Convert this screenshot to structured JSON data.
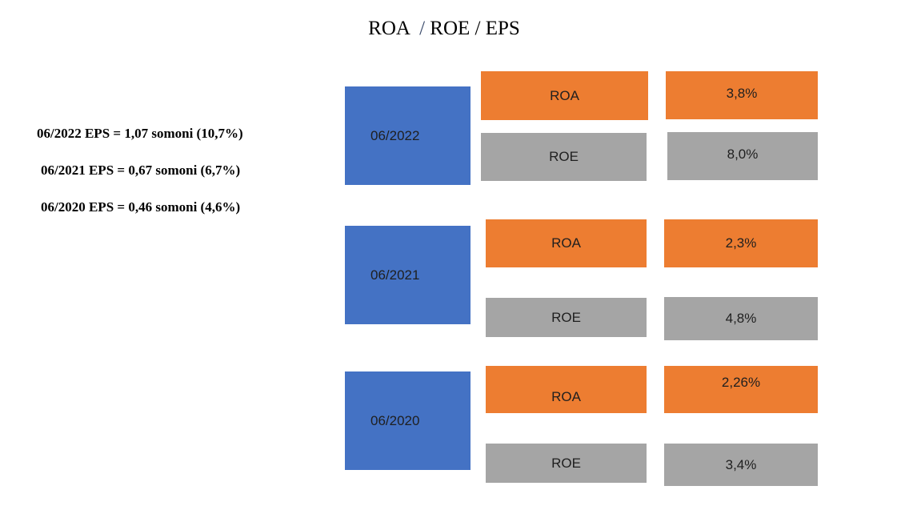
{
  "title": {
    "part1": "ROA  ",
    "slash": "/",
    "part2": " ROE / EPS"
  },
  "eps_lines": [
    "06/2022 EPS = 1,07 somoni (10,7%)",
    "06/2021 EPS = 0,67 somoni (6,7%)",
    "06/2020 EPS = 0,46 somoni (4,6%)"
  ],
  "periods": [
    {
      "year": "06/2022",
      "roa_label": "ROA",
      "roa_value": "3,8%",
      "roe_label": "ROE",
      "roe_value": "8,0%"
    },
    {
      "year": "06/2021",
      "roa_label": "ROA",
      "roa_value": "2,3%",
      "roe_label": "ROE",
      "roe_value": "4,8%"
    },
    {
      "year": "06/2020",
      "roa_label": "ROA",
      "roa_value": "2,26%",
      "roe_label": "ROE",
      "roe_value": "3,4%"
    }
  ],
  "colors": {
    "year": "#4472c4",
    "roa": "#ed7d31",
    "roe": "#a5a5a5"
  }
}
